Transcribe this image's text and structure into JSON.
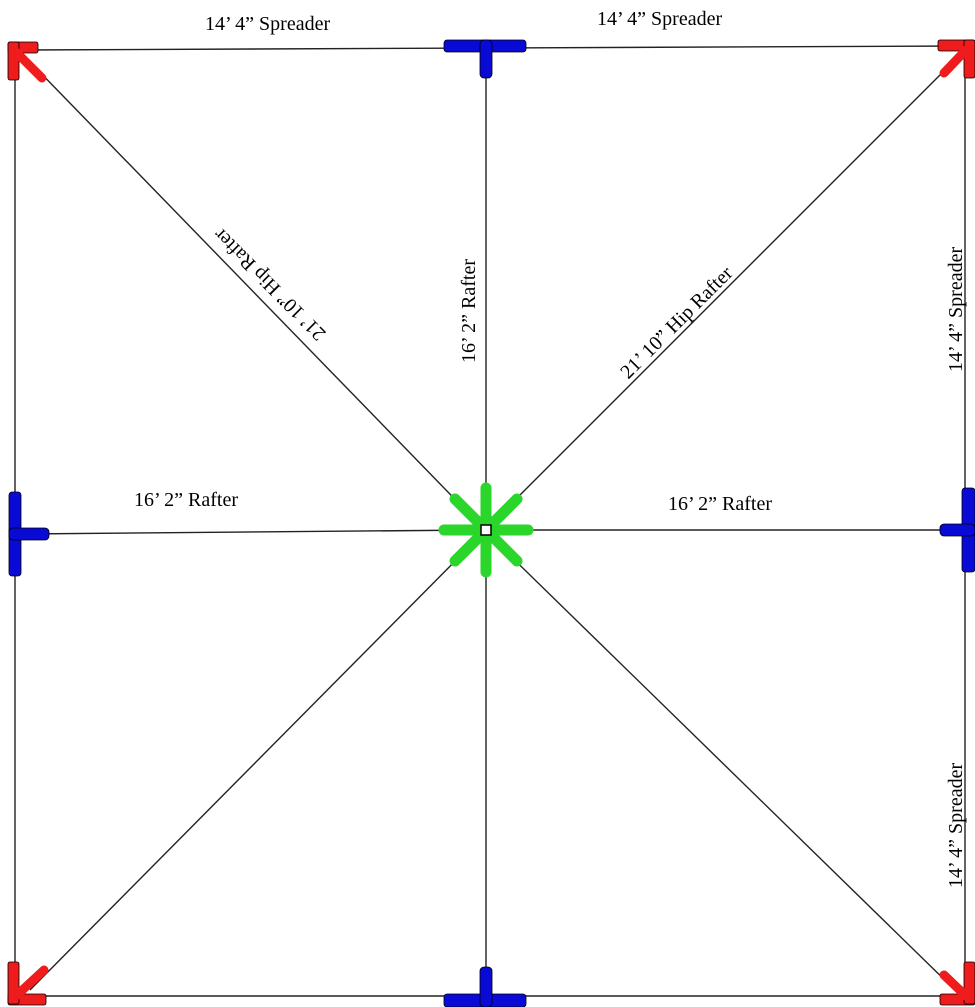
{
  "diagram": {
    "labels": {
      "top_left_spreader": "14’ 4” Spreader",
      "top_right_spreader": "14’ 4” Spreader",
      "right_upper_spreader": "14’ 4” Spreader",
      "right_lower_spreader": "14’ 4” Spreader",
      "hip_rafter_nw": "21’ 10” Hip Rafter",
      "hip_rafter_ne": "21’ 10” Hip Rafter",
      "rafter_north": "16’ 2” Rafter",
      "rafter_west": "16’ 2” Rafter",
      "rafter_east": "16’ 2” Rafter"
    },
    "colors": {
      "corner_connector": "#ee1c1c",
      "t_connector": "#0a0ad6",
      "hub_connector": "#2ad62a",
      "frame_line": "#222222"
    }
  }
}
